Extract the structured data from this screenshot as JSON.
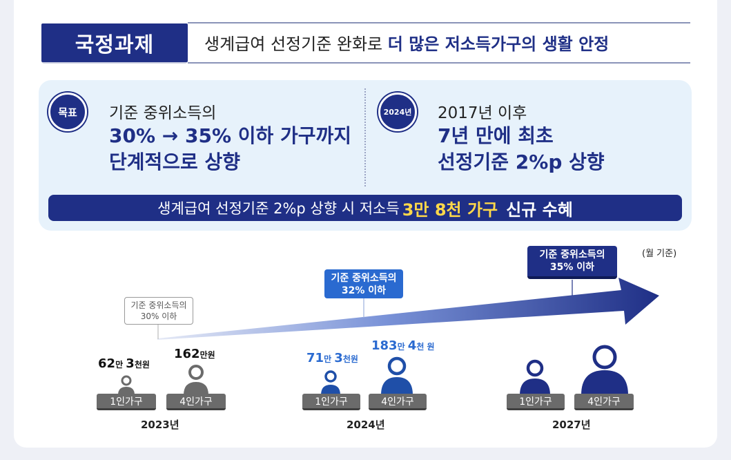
{
  "header": {
    "badge": "국정과제",
    "title_plain": "생계급여 선정기준 완화로 ",
    "title_bold": "더 많은 저소득가구의 생활 안정"
  },
  "goals": {
    "left": {
      "badge": "목표",
      "sub": "기준 중위소득의",
      "line1": "30% → 35% 이하 가구까지",
      "line2": "단계적으로 상향"
    },
    "right": {
      "badge": "2024년",
      "sub": "2017년 이후",
      "line1": "7년 만에 최초",
      "line2": "선정기준 2%p 상향"
    },
    "banner": {
      "plain": "생계급여 선정기준 2%p 상향 시 저소득",
      "highlight": "3만 8천 가구",
      "strong": "신규 수혜"
    }
  },
  "timeline": {
    "unit": "(월 기준)",
    "markers": [
      {
        "line1": "기준 중위소득의",
        "line2": "30% 이하"
      },
      {
        "line1": "기준 중위소득의",
        "line2": "32% 이하"
      },
      {
        "line1": "기준 중위소득의",
        "line2": "35% 이하"
      }
    ],
    "years": [
      {
        "label": "2023년",
        "households": [
          {
            "pill": "1인가구",
            "amount_a": "62",
            "unit_a": "만 ",
            "amount_b": "3",
            "unit_b": "천원"
          },
          {
            "pill": "4인가구",
            "amount_a": "162",
            "unit_a": "만원"
          }
        ]
      },
      {
        "label": "2024년",
        "households": [
          {
            "pill": "1인가구",
            "amount_a": "71",
            "unit_a": "만 ",
            "amount_b": "3",
            "unit_b": "천원"
          },
          {
            "pill": "4인가구",
            "amount_a": "183",
            "unit_a": "만 ",
            "amount_b": "4",
            "unit_b": "천 원"
          }
        ]
      },
      {
        "label": "2027년",
        "households": [
          {
            "pill": "1인가구"
          },
          {
            "pill": "4인가구"
          }
        ]
      }
    ]
  },
  "colors": {
    "navy": "#1f2f86",
    "blue": "#2a6ad0",
    "panel": "#e7f2fb",
    "highlight": "#ffd84a",
    "person": "#6b6b6b"
  }
}
